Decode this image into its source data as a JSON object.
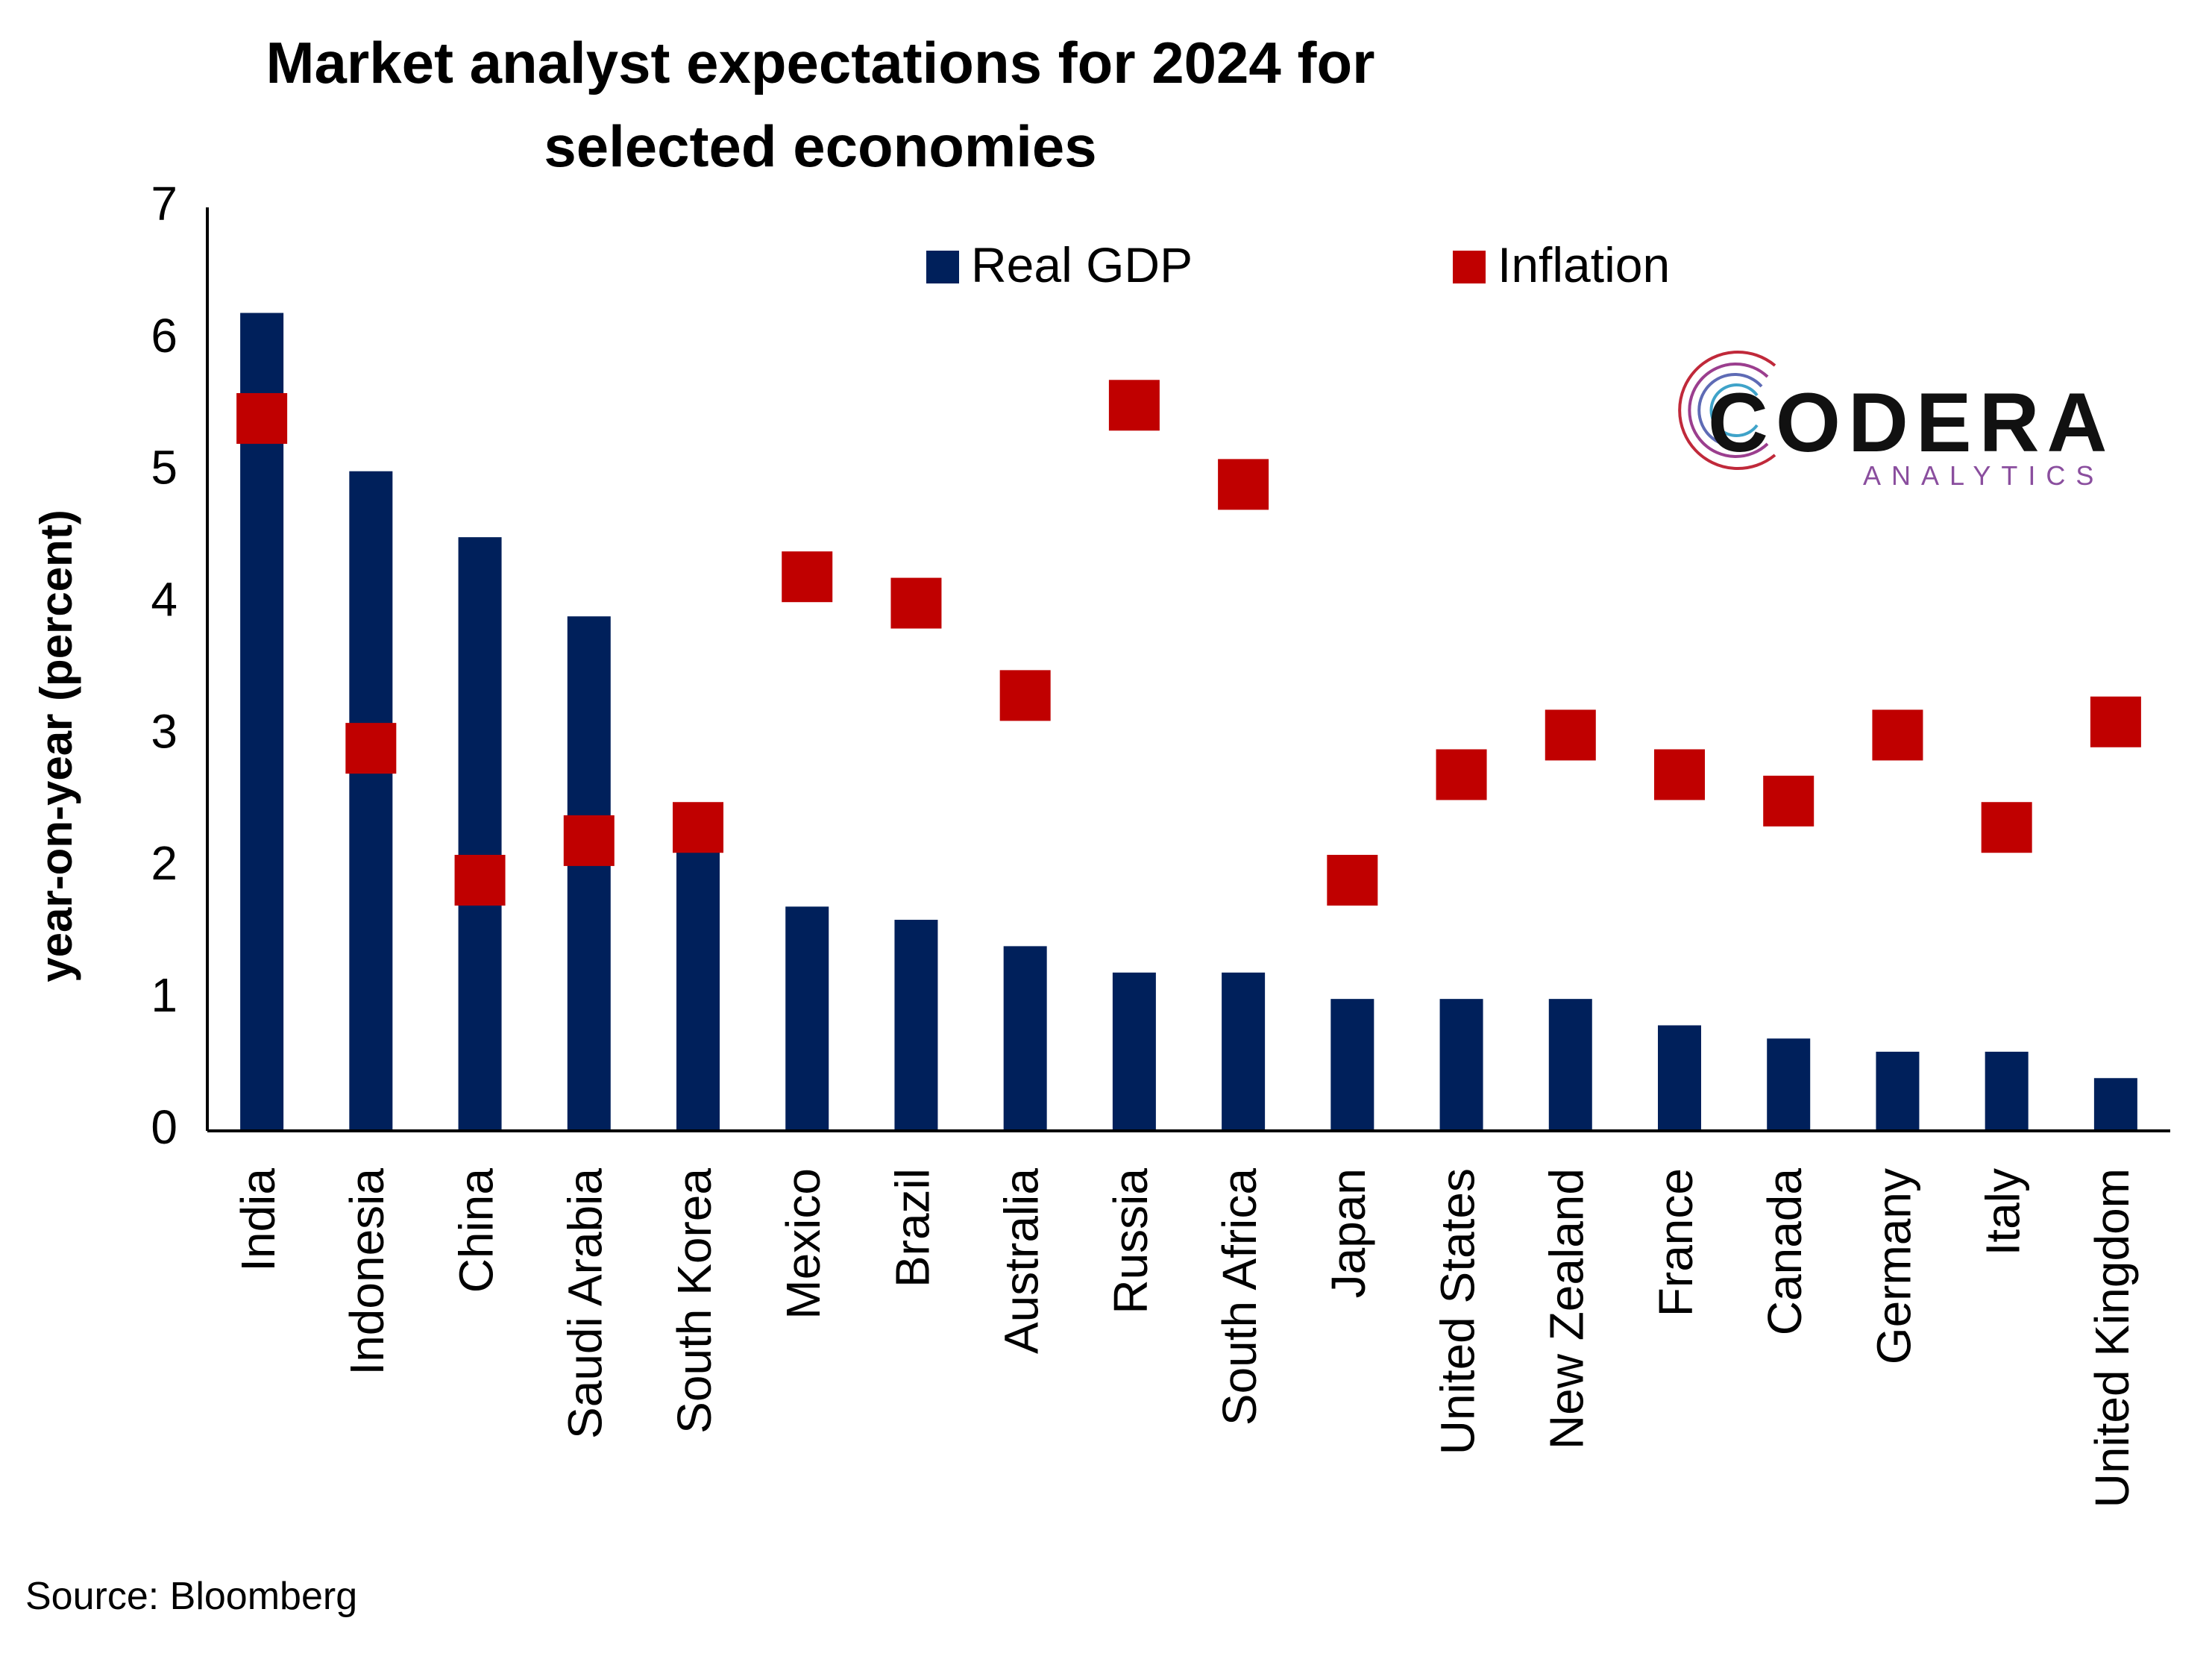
{
  "chart_data": {
    "type": "bar",
    "title": "Market analyst expectations for 2024 for selected economies",
    "xlabel": "",
    "ylabel": "year-on-year (percent)",
    "ylim": [
      0,
      7
    ],
    "yticks": [
      "0",
      "1",
      "2",
      "3",
      "4",
      "5",
      "6",
      "7"
    ],
    "grid": false,
    "legend_position": "top",
    "categories": [
      "India",
      "Indonesia",
      "China",
      "Saudi Arabia",
      "South Korea",
      "Mexico",
      "Brazil",
      "Australia",
      "Russia",
      "South Africa",
      "Japan",
      "United States",
      "New Zealand",
      "France",
      "Canada",
      "Germany",
      "Italy",
      "United Kingdom"
    ],
    "series": [
      {
        "name": "Real GDP",
        "kind": "bar",
        "color": "#00205B",
        "values": [
          6.2,
          5.0,
          4.5,
          3.9,
          2.3,
          1.7,
          1.6,
          1.4,
          1.2,
          1.2,
          1.0,
          1.0,
          1.0,
          0.8,
          0.7,
          0.6,
          0.6,
          0.4
        ]
      },
      {
        "name": "Inflation",
        "kind": "marker",
        "color": "#C00000",
        "values": [
          5.4,
          2.9,
          1.9,
          2.2,
          2.3,
          4.2,
          4.0,
          3.3,
          5.5,
          4.9,
          1.9,
          2.7,
          3.0,
          2.7,
          2.5,
          3.0,
          2.3,
          3.1
        ]
      }
    ]
  },
  "source_note": "Source: Bloomberg",
  "logo": {
    "name": "CODERA",
    "tagline": "ANALYTICS"
  }
}
